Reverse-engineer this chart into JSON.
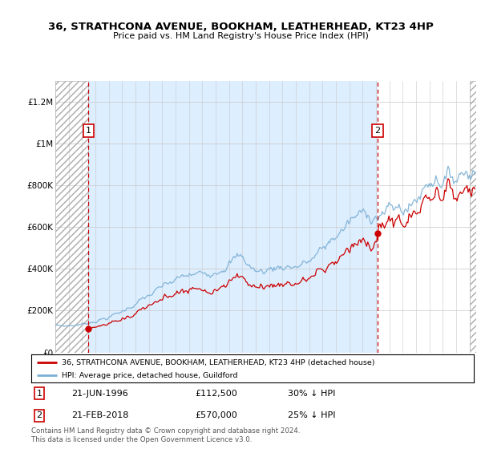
{
  "title": "36, STRATHCONA AVENUE, BOOKHAM, LEATHERHEAD, KT23 4HP",
  "subtitle": "Price paid vs. HM Land Registry's House Price Index (HPI)",
  "legend_label_red": "36, STRATHCONA AVENUE, BOOKHAM, LEATHERHEAD, KT23 4HP (detached house)",
  "legend_label_blue": "HPI: Average price, detached house, Guildford",
  "annotation1_date": "21-JUN-1996",
  "annotation1_price": "£112,500",
  "annotation1_hpi": "30% ↓ HPI",
  "annotation2_date": "21-FEB-2018",
  "annotation2_price": "£570,000",
  "annotation2_hpi": "25% ↓ HPI",
  "footer": "Contains HM Land Registry data © Crown copyright and database right 2024.\nThis data is licensed under the Open Government Licence v3.0.",
  "vline1_x": 1996.47,
  "vline2_x": 2018.13,
  "point1_x": 1996.47,
  "point1_y": 112500,
  "point2_x": 2018.13,
  "point2_y": 570000,
  "ylim": [
    0,
    1300000
  ],
  "xlim": [
    1994.0,
    2025.5
  ],
  "red_color": "#cc0000",
  "blue_color": "#7aafd4",
  "vline_color": "#cc0000",
  "hatch_bg_color": "#e8e8e8",
  "light_blue_bg": "#ddeeff",
  "yticks": [
    0,
    200000,
    400000,
    600000,
    800000,
    1000000,
    1200000
  ],
  "ytick_labels": [
    "£0",
    "£200K",
    "£400K",
    "£600K",
    "£800K",
    "£1M",
    "£1.2M"
  ]
}
